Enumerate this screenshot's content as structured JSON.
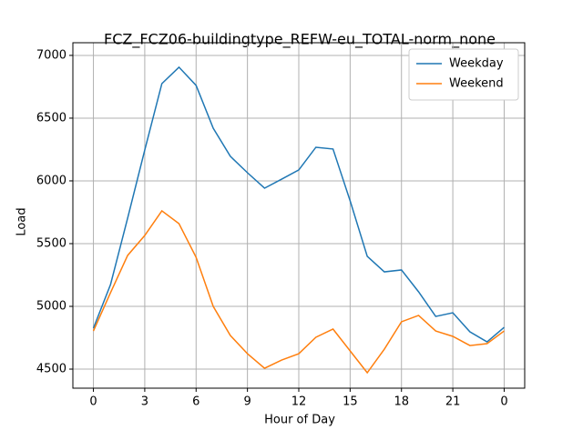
{
  "chart_data": {
    "type": "line",
    "title": "FCZ_FCZ06-buildingtype_REFW-eu_TOTAL-norm_none",
    "xlabel": "Hour of Day",
    "ylabel": "Load",
    "x": [
      0,
      1,
      2,
      3,
      4,
      5,
      6,
      7,
      8,
      9,
      10,
      11,
      12,
      13,
      14,
      15,
      16,
      17,
      18,
      19,
      20,
      21,
      22,
      23,
      24
    ],
    "series": [
      {
        "name": "Weekday",
        "color": "#1f77b4",
        "values": [
          4826,
          5174,
          5703,
          6246,
          6775,
          6906,
          6761,
          6420,
          6196,
          6065,
          5942,
          6014,
          6087,
          6268,
          6254,
          5841,
          5399,
          5275,
          5290,
          5116,
          4920,
          4949,
          4797,
          4717,
          4833
        ]
      },
      {
        "name": "Weekend",
        "color": "#ff7f0e",
        "values": [
          4804,
          5109,
          5406,
          5565,
          5761,
          5659,
          5391,
          5000,
          4768,
          4623,
          4507,
          4572,
          4623,
          4754,
          4819,
          4645,
          4471,
          4659,
          4877,
          4928,
          4804,
          4761,
          4688,
          4703,
          4804
        ]
      }
    ],
    "xlim": [
      -1.2,
      25.2
    ],
    "xticks": [
      0,
      3,
      6,
      9,
      12,
      15,
      18,
      21,
      {
        "value": 24,
        "label": "0"
      }
    ],
    "ylim": [
      4348,
      7101
    ],
    "yticks": [
      4500,
      5000,
      5500,
      6000,
      6500,
      7000
    ],
    "grid": true,
    "legend": "upper right"
  }
}
